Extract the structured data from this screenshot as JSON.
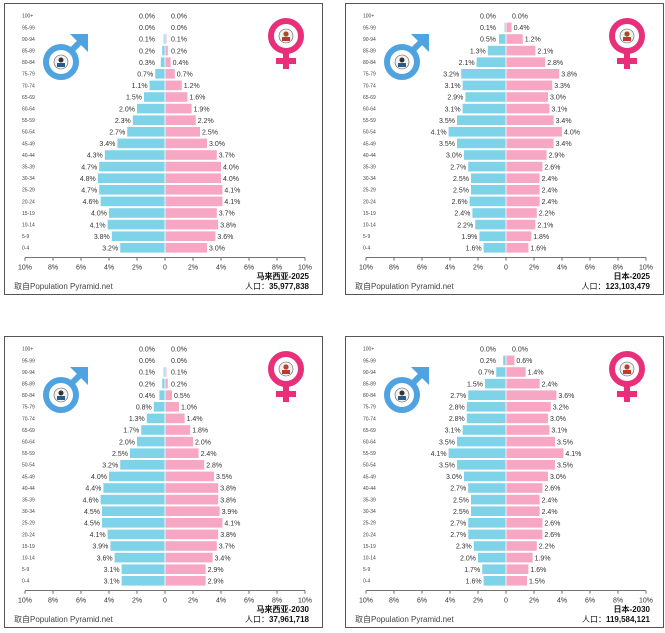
{
  "chart_data": [
    {
      "type": "bar",
      "title": "马来西亚-2025",
      "population_label": "人口：",
      "population": "35,977,838",
      "source": "取自Population Pyramid.net",
      "xticks": [
        "10%",
        "8%",
        "6%",
        "4%",
        "2%",
        "0",
        "2%",
        "4%",
        "6%",
        "8%",
        "10%"
      ],
      "age_groups": [
        "100+",
        "95-99",
        "90-94",
        "85-89",
        "80-84",
        "75-79",
        "70-74",
        "65-69",
        "60-64",
        "55-59",
        "50-54",
        "45-49",
        "40-44",
        "35-39",
        "30-34",
        "25-29",
        "20-24",
        "15-19",
        "10-14",
        "5-9",
        "0-4"
      ],
      "series": [
        {
          "values": [
            0.0,
            0.0,
            0.1,
            0.2,
            0.3,
            0.7,
            1.1,
            1.5,
            2.0,
            2.3,
            2.7,
            3.4,
            4.3,
            4.7,
            4.8,
            4.7,
            4.6,
            4.0,
            4.1,
            3.8,
            3.2
          ]
        },
        {
          "values": [
            0.0,
            0.0,
            0.1,
            0.2,
            0.4,
            0.7,
            1.2,
            1.6,
            1.9,
            2.2,
            2.5,
            3.0,
            3.7,
            4.0,
            4.0,
            4.1,
            4.1,
            3.7,
            3.8,
            3.6,
            3.0
          ]
        }
      ]
    },
    {
      "type": "bar",
      "title": "日本-2025",
      "population_label": "人口：",
      "population": "123,103,479",
      "source": "取自Population Pyramid.net",
      "xticks": [
        "10%",
        "8%",
        "6%",
        "4%",
        "2%",
        "0",
        "2%",
        "4%",
        "6%",
        "8%",
        "10%"
      ],
      "age_groups": [
        "100+",
        "95-99",
        "90-94",
        "85-89",
        "80-84",
        "75-79",
        "70-74",
        "65-69",
        "60-64",
        "55-59",
        "50-54",
        "45-49",
        "40-44",
        "35-39",
        "30-34",
        "25-29",
        "20-24",
        "15-19",
        "10-14",
        "5-9",
        "0-4"
      ],
      "series": [
        {
          "values": [
            0.0,
            0.1,
            0.5,
            1.3,
            2.1,
            3.2,
            3.1,
            2.9,
            3.1,
            3.5,
            4.1,
            3.5,
            3.0,
            2.7,
            2.5,
            2.5,
            2.6,
            2.4,
            2.2,
            1.9,
            1.6
          ]
        },
        {
          "values": [
            0.0,
            0.4,
            1.2,
            2.1,
            2.8,
            3.8,
            3.3,
            3.0,
            3.1,
            3.4,
            4.0,
            3.4,
            2.9,
            2.6,
            2.4,
            2.4,
            2.4,
            2.2,
            2.1,
            1.8,
            1.6
          ]
        }
      ]
    },
    {
      "type": "bar",
      "title": "马来西亚-2030",
      "population_label": "人口：",
      "population": "37,961,718",
      "source": "取自Population Pyramid.net",
      "xticks": [
        "10%",
        "8%",
        "6%",
        "4%",
        "2%",
        "0",
        "2%",
        "4%",
        "6%",
        "8%",
        "10%"
      ],
      "age_groups": [
        "100+",
        "95-99",
        "90-94",
        "85-89",
        "80-84",
        "75-79",
        "70-74",
        "65-69",
        "60-64",
        "55-59",
        "50-54",
        "45-49",
        "40-44",
        "35-39",
        "30-34",
        "25-29",
        "20-24",
        "15-19",
        "10-14",
        "5-9",
        "0-4"
      ],
      "series": [
        {
          "values": [
            0.0,
            0.0,
            0.1,
            0.2,
            0.4,
            0.8,
            1.3,
            1.7,
            2.0,
            2.5,
            3.2,
            4.0,
            4.4,
            4.6,
            4.5,
            4.5,
            4.1,
            3.9,
            3.6,
            3.1,
            3.1
          ]
        },
        {
          "values": [
            0.0,
            0.0,
            0.1,
            0.2,
            0.5,
            1.0,
            1.4,
            1.8,
            2.0,
            2.4,
            2.8,
            3.5,
            3.8,
            3.8,
            3.9,
            4.1,
            3.8,
            3.7,
            3.4,
            2.9,
            2.9
          ]
        }
      ]
    },
    {
      "type": "bar",
      "title": "日本-2030",
      "population_label": "人口：",
      "population": "119,584,121",
      "source": "取自Population Pyramid.net",
      "xticks": [
        "10%",
        "8%",
        "6%",
        "4%",
        "2%",
        "0",
        "2%",
        "4%",
        "6%",
        "8%",
        "10%"
      ],
      "age_groups": [
        "100+",
        "95-99",
        "90-94",
        "85-89",
        "80-84",
        "75-79",
        "70-74",
        "65-69",
        "60-64",
        "55-59",
        "50-54",
        "45-49",
        "40-44",
        "35-39",
        "30-34",
        "25-29",
        "20-24",
        "15-19",
        "10-14",
        "5-9",
        "0-4"
      ],
      "series": [
        {
          "values": [
            0.0,
            0.2,
            0.7,
            1.5,
            2.7,
            2.8,
            2.8,
            3.1,
            3.5,
            4.1,
            3.5,
            3.0,
            2.7,
            2.5,
            2.5,
            2.7,
            2.7,
            2.3,
            2.0,
            1.7,
            1.6
          ]
        },
        {
          "values": [
            0.0,
            0.6,
            1.4,
            2.4,
            3.6,
            3.2,
            3.0,
            3.1,
            3.5,
            4.1,
            3.5,
            3.0,
            2.6,
            2.4,
            2.4,
            2.6,
            2.6,
            2.2,
            1.9,
            1.6,
            1.5
          ]
        }
      ]
    }
  ],
  "icons": {
    "male": "male-symbol-icon",
    "female": "female-symbol-icon",
    "male_color": "#4fa3e0",
    "female_color": "#e8307a",
    "male_bar_color": "#7fd3e9",
    "female_bar_color": "#f7a6c4"
  }
}
